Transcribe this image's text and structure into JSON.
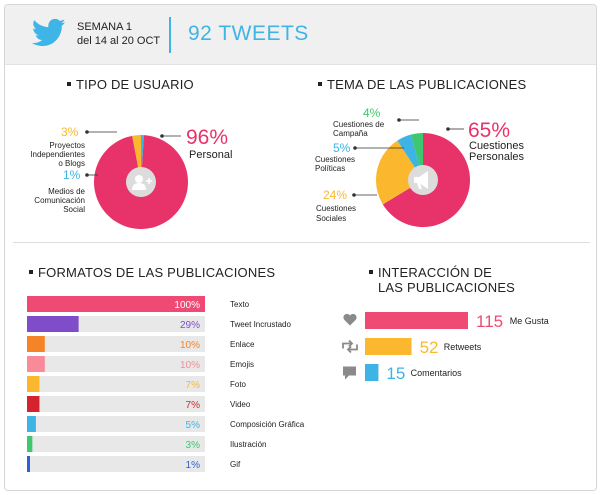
{
  "header": {
    "week_label": "SEMANA 1",
    "date_range": "del 14 al 20 OCT",
    "tweets_total": "92 TWEETS"
  },
  "sections": {
    "user_type": "TIPO DE USUARIO",
    "topics": "TEMA DE LAS PUBLICACIONES",
    "formats": "FORMATOS DE LAS PUBLICACIONES",
    "interaction_line1": "INTERACCIÓN DE",
    "interaction_line2": "LAS PUBLICACIONES"
  },
  "chart_data": [
    {
      "type": "pie",
      "title": "TIPO DE USUARIO",
      "slices": [
        {
          "pct": "96%",
          "value": 96,
          "label": [
            "Personal"
          ],
          "color": "#e8336a"
        },
        {
          "pct": "3%",
          "value": 3,
          "label": [
            "Proyectos",
            "Independientes",
            "o Blogs"
          ],
          "color": "#fbb82f"
        },
        {
          "pct": "1%",
          "value": 1,
          "label": [
            "Medios de",
            "Comunicación",
            "Social"
          ],
          "color": "#3db4e4"
        }
      ],
      "center_icon": "add-user-icon"
    },
    {
      "type": "pie",
      "title": "TEMA DE LAS PUBLICACIONES",
      "slices": [
        {
          "pct": "65%",
          "value": 65,
          "label": [
            "Cuestiones",
            "Personales"
          ],
          "color": "#e8336a"
        },
        {
          "pct": "24%",
          "value": 24,
          "label": [
            "Cuestiones",
            "Sociales"
          ],
          "color": "#fbb82f"
        },
        {
          "pct": "5%",
          "value": 5,
          "label": [
            "Cuestiones",
            "Políticas"
          ],
          "color": "#3db4e4"
        },
        {
          "pct": "4%",
          "value": 4,
          "label": [
            "Cuestiones de",
            "Campaña"
          ],
          "color": "#3ec76e"
        }
      ],
      "center_icon": "megaphone-icon"
    },
    {
      "type": "bar",
      "title": "FORMATOS DE LAS PUBLICACIONES",
      "xlim": [
        0,
        100
      ],
      "bars": [
        {
          "name": "Texto",
          "value": 100,
          "pct": "100%",
          "color": "#ef4a74"
        },
        {
          "name": "Tweet Incrustado",
          "value": 29,
          "pct": "29%",
          "color": "#7f4dc9"
        },
        {
          "name": "Enlace",
          "value": 10,
          "pct": "10%",
          "color": "#f58426"
        },
        {
          "name": "Emojis",
          "value": 10,
          "pct": "10%",
          "color": "#f88a9a"
        },
        {
          "name": "Foto",
          "value": 7,
          "pct": "7%",
          "color": "#fbb82f"
        },
        {
          "name": "Video",
          "value": 7,
          "pct": "7%",
          "color": "#d5232d"
        },
        {
          "name": "Composición Gráfica",
          "value": 5,
          "pct": "5%",
          "color": "#3db4e4"
        },
        {
          "name": "Ilustración",
          "value": 3,
          "pct": "3%",
          "color": "#3ec76e"
        },
        {
          "name": "Gif",
          "value": 1,
          "pct": "1%",
          "color": "#2f5fd6"
        }
      ]
    },
    {
      "type": "bar",
      "title": "INTERACCIÓN DE LAS PUBLICACIONES",
      "bars": [
        {
          "name": "Me Gusta",
          "value": 115,
          "color": "#ef4a74",
          "icon": "heart-icon"
        },
        {
          "name": "Retweets",
          "value": 52,
          "color": "#fbb82f",
          "icon": "retweet-icon"
        },
        {
          "name": "Comentarios",
          "value": 15,
          "color": "#3db4e4",
          "icon": "comment-icon"
        }
      ]
    }
  ]
}
